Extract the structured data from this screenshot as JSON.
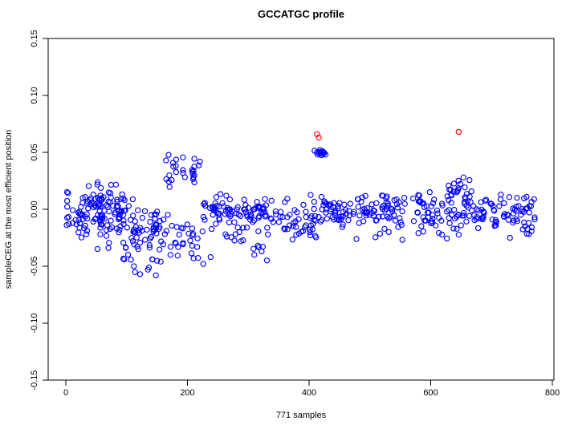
{
  "title": "GCCATGC profile",
  "x_axis_label": "771 samples",
  "y_axis_label": "sampleCEG at the most efficient position",
  "colors": {
    "point_blue": "#0000ff",
    "point_red": "#ff0000",
    "axis": "#000000",
    "background": "#ffffff"
  },
  "chart_data": {
    "type": "scatter",
    "title": "GCCATGC profile",
    "xlabel": "771 samples",
    "ylabel": "sampleCEG at the most efficient position",
    "n_samples": 771,
    "xlim": [
      0,
      800
    ],
    "ylim": [
      -0.15,
      0.15
    ],
    "grid": false,
    "legend": "none",
    "marker": "open-circle",
    "x_ticks": {
      "values": [
        0,
        200,
        400,
        600,
        800
      ],
      "labels": [
        "0",
        "200",
        "400",
        "600",
        "800"
      ]
    },
    "y_ticks": {
      "values": [
        -0.15,
        -0.1,
        -0.05,
        0.0,
        0.05,
        0.1,
        0.15
      ],
      "labels": [
        "-0.15",
        "-0.10",
        "-0.05",
        "0.00",
        "0.05",
        "0.10",
        "0.15"
      ]
    },
    "series": [
      {
        "name": "samples",
        "color": "#0000ff",
        "marker": "open-circle",
        "role": "main-band"
      },
      {
        "name": "highlighted-outliers",
        "color": "#ff0000",
        "marker": "open-circle",
        "role": "outliers"
      }
    ],
    "red_points": [
      [
        413,
        0.066
      ],
      [
        416,
        0.063
      ],
      [
        646,
        0.068
      ]
    ],
    "blue_cluster_points": [
      [
        409,
        0.0515
      ],
      [
        413,
        0.05
      ],
      [
        414,
        0.048
      ],
      [
        416,
        0.0505
      ],
      [
        417,
        0.049
      ],
      [
        418,
        0.052
      ],
      [
        419,
        0.05
      ],
      [
        420,
        0.0475
      ],
      [
        421,
        0.049
      ],
      [
        422,
        0.051
      ],
      [
        423,
        0.0485
      ],
      [
        424,
        0.05
      ],
      [
        425,
        0.0495
      ],
      [
        427,
        0.048
      ]
    ],
    "blue_low_points": [
      [
        70,
        -0.034
      ],
      [
        96,
        -0.044
      ],
      [
        112,
        -0.05
      ],
      [
        122,
        -0.057
      ],
      [
        135,
        -0.053
      ],
      [
        148,
        -0.058
      ],
      [
        156,
        -0.046
      ],
      [
        172,
        -0.04
      ],
      [
        210,
        -0.043
      ],
      [
        226,
        -0.048
      ],
      [
        238,
        -0.042
      ],
      [
        310,
        -0.04
      ],
      [
        322,
        -0.037
      ]
    ],
    "blue_band_segments": [
      {
        "x0": 0,
        "x1": 28,
        "n": 24,
        "y_mean": -0.004,
        "y_sd": 0.009
      },
      {
        "x0": 26,
        "x1": 58,
        "n": 42,
        "y_mean": 0.001,
        "y_sd": 0.012
      },
      {
        "x0": 56,
        "x1": 96,
        "n": 58,
        "y_mean": -0.006,
        "y_sd": 0.012
      },
      {
        "x0": 94,
        "x1": 150,
        "n": 58,
        "y_mean": -0.019,
        "y_sd": 0.015
      },
      {
        "x0": 148,
        "x1": 166,
        "n": 12,
        "y_mean": -0.016,
        "y_sd": 0.011
      },
      {
        "x0": 162,
        "x1": 196,
        "n": 16,
        "y_mean": 0.034,
        "y_sd": 0.007
      },
      {
        "x0": 166,
        "x1": 206,
        "n": 16,
        "y_mean": -0.024,
        "y_sd": 0.01
      },
      {
        "x0": 207,
        "x1": 224,
        "n": 12,
        "y_mean": 0.035,
        "y_sd": 0.009
      },
      {
        "x0": 204,
        "x1": 230,
        "n": 9,
        "y_mean": -0.029,
        "y_sd": 0.008
      },
      {
        "x0": 226,
        "x1": 332,
        "n": 72,
        "y_mean": -0.001,
        "y_sd": 0.0055
      },
      {
        "x0": 238,
        "x1": 332,
        "n": 26,
        "y_mean": -0.021,
        "y_sd": 0.01
      },
      {
        "x0": 330,
        "x1": 410,
        "n": 48,
        "y_mean": -0.011,
        "y_sd": 0.01
      },
      {
        "x0": 408,
        "x1": 472,
        "n": 48,
        "y_mean": -0.002,
        "y_sd": 0.008
      },
      {
        "x0": 470,
        "x1": 582,
        "n": 78,
        "y_mean": -0.003,
        "y_sd": 0.009
      },
      {
        "x0": 580,
        "x1": 636,
        "n": 42,
        "y_mean": -0.005,
        "y_sd": 0.01
      },
      {
        "x0": 628,
        "x1": 670,
        "n": 20,
        "y_mean": 0.017,
        "y_sd": 0.008
      },
      {
        "x0": 634,
        "x1": 722,
        "n": 58,
        "y_mean": -0.003,
        "y_sd": 0.009
      },
      {
        "x0": 718,
        "x1": 771,
        "n": 42,
        "y_mean": -0.004,
        "y_sd": 0.008
      }
    ]
  }
}
